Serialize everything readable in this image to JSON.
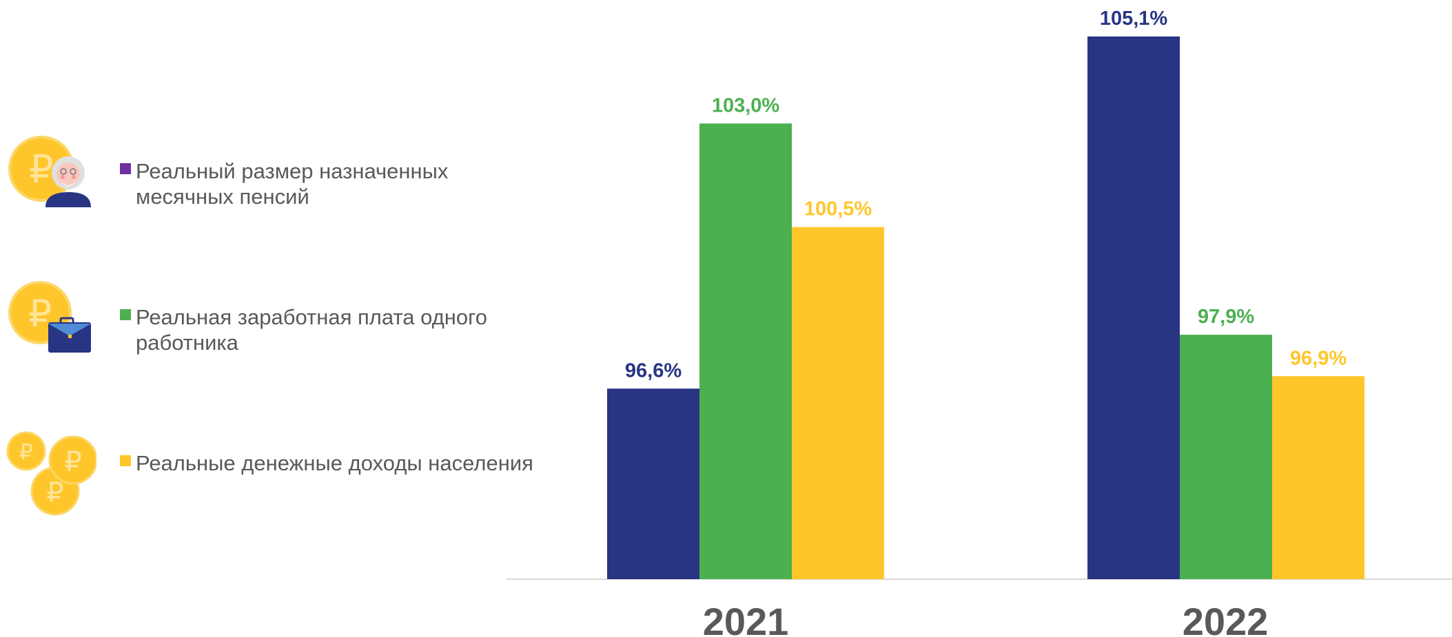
{
  "legend": {
    "items": [
      {
        "label": "Реальный размер назначенных\nмесячных пенсий",
        "swatch_color": "#7030A0",
        "icon": "pensioner-coin-icon"
      },
      {
        "label": "Реальная заработная плата одного\nработника",
        "swatch_color": "#4CAF50",
        "icon": "briefcase-coin-icon"
      },
      {
        "label": "Реальные денежные доходы населения",
        "swatch_color": "#FFC62B",
        "icon": "coins-stack-icon"
      }
    ]
  },
  "colors": {
    "series_1": "#283583",
    "series_2": "#4CAF50",
    "series_3": "#FFC62B",
    "axis": "#D9D9D9",
    "label_text": "#595959"
  },
  "chart_data": {
    "type": "bar",
    "categories": [
      "2021",
      "2022"
    ],
    "series": [
      {
        "name": "Реальный размер назначенных месячных пенсий",
        "values": [
          96.6,
          105.1
        ],
        "labels": [
          "96,6%",
          "105,1%"
        ]
      },
      {
        "name": "Реальная заработная плата одного работника",
        "values": [
          103.0,
          97.9
        ],
        "labels": [
          "103,0%",
          "97,9%"
        ]
      },
      {
        "name": "Реальные денежные доходы населения",
        "values": [
          100.5,
          96.9
        ],
        "labels": [
          "100,5%",
          "96,9%"
        ]
      }
    ],
    "ylim": [
      92.0,
      105.1
    ],
    "grid": false,
    "legend_position": "left"
  }
}
